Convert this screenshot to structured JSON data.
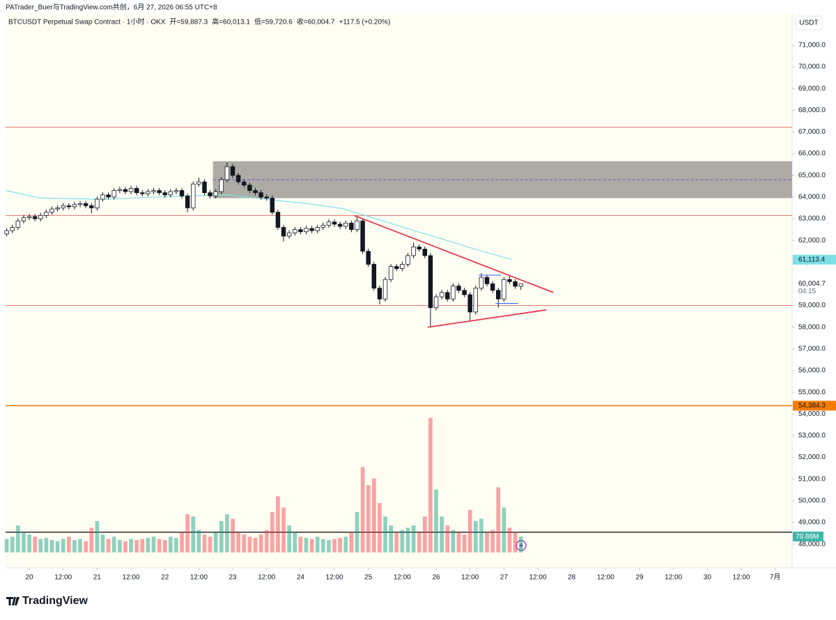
{
  "chart_data": {
    "type": "candlestick",
    "attribution": "PATrader_Buer与TradingView.com共创，6月 27, 2026 06:55 UTC+8",
    "symbol": "BTCUSDT Perpetual Swap Contract · 1小时 · OKX",
    "ohlc_text": [
      "开=59,887.3",
      "高=60,013.1",
      "低=59,720.6",
      "收=60,004.7",
      "+117.5 (+0.20%)"
    ],
    "currency": "USDT",
    "brand": "TradingView",
    "xlim": [
      "2026-06-19 15:36",
      "2026-07-01 06:00"
    ],
    "xticks": [
      {
        "value": "2026-06-20 00:00",
        "label": "20"
      },
      {
        "value": "2026-06-20 12:00",
        "label": "12:00"
      },
      {
        "value": "2026-06-21 00:00",
        "label": "21"
      },
      {
        "value": "2026-06-21 12:00",
        "label": "12:00"
      },
      {
        "value": "2026-06-22 00:00",
        "label": "22"
      },
      {
        "value": "2026-06-22 12:00",
        "label": "12:00"
      },
      {
        "value": "2026-06-23 00:00",
        "label": "23"
      },
      {
        "value": "2026-06-23 12:00",
        "label": "12:00"
      },
      {
        "value": "2026-06-24 00:00",
        "label": "24"
      },
      {
        "value": "2026-06-24 12:00",
        "label": "12:00"
      },
      {
        "value": "2026-06-25 00:00",
        "label": "25"
      },
      {
        "value": "2026-06-25 12:00",
        "label": "12:00"
      },
      {
        "value": "2026-06-26 00:00",
        "label": "26"
      },
      {
        "value": "2026-06-26 12:00",
        "label": "12:00"
      },
      {
        "value": "2026-06-27 00:00",
        "label": "27"
      },
      {
        "value": "2026-06-27 12:00",
        "label": "12:00"
      },
      {
        "value": "2026-06-28 00:00",
        "label": "28"
      },
      {
        "value": "2026-06-28 12:00",
        "label": "12:00"
      },
      {
        "value": "2026-06-29 00:00",
        "label": "29"
      },
      {
        "value": "2026-06-29 12:00",
        "label": "12:00"
      },
      {
        "value": "2026-06-30 00:00",
        "label": "30"
      },
      {
        "value": "2026-06-30 12:00",
        "label": "12:00"
      },
      {
        "value": "2026-07-01 00:00",
        "label": "7月"
      }
    ],
    "ylim": [
      47620,
      72440
    ],
    "yticks": [
      {
        "value": 48000,
        "label": "48,000.0"
      },
      {
        "value": 49000,
        "label": "49,000.0"
      },
      {
        "value": 50000,
        "label": "50,000.0"
      },
      {
        "value": 51000,
        "label": "51,000.0"
      },
      {
        "value": 52000,
        "label": "52,000.0"
      },
      {
        "value": 53000,
        "label": "53,000.0"
      },
      {
        "value": 54000,
        "label": "54,000.0"
      },
      {
        "value": 55000,
        "label": "55,000.0"
      },
      {
        "value": 56000,
        "label": "56,000.0"
      },
      {
        "value": 57000,
        "label": "57,000.0"
      },
      {
        "value": 58000,
        "label": "58,000.0"
      },
      {
        "value": 59000,
        "label": "59,000.0"
      },
      {
        "value": 60000,
        "label": "60,000.0"
      },
      {
        "value": 61000,
        "label": "61,000.0"
      },
      {
        "value": 62000,
        "label": "62,000.0"
      },
      {
        "value": 63000,
        "label": "63,000.0"
      },
      {
        "value": 64000,
        "label": "64,000.0"
      },
      {
        "value": 65000,
        "label": "65,000.0"
      },
      {
        "value": 66000,
        "label": "66,000.0"
      },
      {
        "value": 67000,
        "label": "67,000.0"
      },
      {
        "value": 68000,
        "label": "68,000.0"
      },
      {
        "value": 69000,
        "label": "69,000.0"
      },
      {
        "value": 70000,
        "label": "70,000.0"
      },
      {
        "value": 71000,
        "label": "71,000.0"
      }
    ],
    "up_color": "#089981",
    "down_color": "#f23645",
    "candles": {
      "x": [
        "2026-06-19 16:00",
        "2026-06-19 18:00",
        "2026-06-19 20:00",
        "2026-06-19 22:00",
        "2026-06-20 00:00",
        "2026-06-20 02:00",
        "2026-06-20 04:00",
        "2026-06-20 06:00",
        "2026-06-20 08:00",
        "2026-06-20 10:00",
        "2026-06-20 12:00",
        "2026-06-20 14:00",
        "2026-06-20 16:00",
        "2026-06-20 18:00",
        "2026-06-20 20:00",
        "2026-06-20 22:00",
        "2026-06-21 00:00",
        "2026-06-21 02:00",
        "2026-06-21 04:00",
        "2026-06-21 06:00",
        "2026-06-21 08:00",
        "2026-06-21 10:00",
        "2026-06-21 12:00",
        "2026-06-21 14:00",
        "2026-06-21 16:00",
        "2026-06-21 18:00",
        "2026-06-21 20:00",
        "2026-06-21 22:00",
        "2026-06-22 00:00",
        "2026-06-22 02:00",
        "2026-06-22 04:00",
        "2026-06-22 06:00",
        "2026-06-22 08:00",
        "2026-06-22 10:00",
        "2026-06-22 12:00",
        "2026-06-22 14:00",
        "2026-06-22 16:00",
        "2026-06-22 18:00",
        "2026-06-22 20:00",
        "2026-06-22 22:00",
        "2026-06-23 00:00",
        "2026-06-23 02:00",
        "2026-06-23 04:00",
        "2026-06-23 06:00",
        "2026-06-23 08:00",
        "2026-06-23 10:00",
        "2026-06-23 12:00",
        "2026-06-23 14:00",
        "2026-06-23 16:00",
        "2026-06-23 18:00",
        "2026-06-23 20:00",
        "2026-06-23 22:00",
        "2026-06-24 00:00",
        "2026-06-24 02:00",
        "2026-06-24 04:00",
        "2026-06-24 06:00",
        "2026-06-24 08:00",
        "2026-06-24 10:00",
        "2026-06-24 12:00",
        "2026-06-24 14:00",
        "2026-06-24 16:00",
        "2026-06-24 18:00",
        "2026-06-24 20:00",
        "2026-06-24 22:00",
        "2026-06-25 00:00",
        "2026-06-25 02:00",
        "2026-06-25 04:00",
        "2026-06-25 06:00",
        "2026-06-25 08:00",
        "2026-06-25 10:00",
        "2026-06-25 12:00",
        "2026-06-25 14:00",
        "2026-06-25 16:00",
        "2026-06-25 18:00",
        "2026-06-25 20:00",
        "2026-06-25 22:00",
        "2026-06-26 00:00",
        "2026-06-26 02:00",
        "2026-06-26 04:00",
        "2026-06-26 06:00",
        "2026-06-26 08:00",
        "2026-06-26 10:00",
        "2026-06-26 12:00",
        "2026-06-26 14:00",
        "2026-06-26 16:00",
        "2026-06-26 18:00",
        "2026-06-26 20:00",
        "2026-06-26 22:00",
        "2026-06-27 00:00",
        "2026-06-27 02:00",
        "2026-06-27 04:00",
        "2026-06-27 06:00"
      ],
      "open": [
        62300,
        62450,
        62600,
        62900,
        63050,
        63100,
        63000,
        63150,
        63300,
        63450,
        63500,
        63600,
        63550,
        63650,
        63700,
        63600,
        63500,
        63900,
        64100,
        64000,
        64300,
        64350,
        64250,
        64400,
        64200,
        64150,
        64250,
        64300,
        64200,
        64100,
        64250,
        64300,
        64050,
        63500,
        64600,
        64700,
        64200,
        64050,
        64250,
        64800,
        65400,
        65000,
        64700,
        64550,
        64300,
        64200,
        64000,
        63950,
        63300,
        62600,
        62200,
        62350,
        62500,
        62400,
        62550,
        62450,
        62600,
        62700,
        62850,
        62750,
        62650,
        62800,
        62500,
        62900,
        61500,
        60900,
        59800,
        59300,
        60200,
        60800,
        60700,
        60900,
        61300,
        61700,
        61600,
        61300,
        58900,
        59400,
        59600,
        59300,
        59900,
        59700,
        59500,
        58700,
        59800,
        60300,
        60000,
        59700,
        59300,
        60200,
        60100,
        59887.3
      ],
      "high": [
        62570,
        62720,
        63020,
        63170,
        63220,
        63220,
        63270,
        63420,
        63570,
        63620,
        63720,
        63720,
        63770,
        63820,
        63820,
        63720,
        64020,
        64220,
        64220,
        64420,
        64470,
        64470,
        64520,
        64520,
        64320,
        64370,
        64420,
        64420,
        64320,
        64370,
        64420,
        64420,
        64170,
        64720,
        64900,
        64820,
        64320,
        64370,
        64920,
        65600,
        65520,
        65120,
        64820,
        64670,
        64420,
        64320,
        64120,
        64070,
        63420,
        62720,
        62470,
        62620,
        62620,
        62670,
        62670,
        62720,
        62820,
        62970,
        62970,
        62870,
        62920,
        62920,
        63150,
        63020,
        61620,
        61020,
        59920,
        60320,
        60920,
        60920,
        61020,
        61420,
        61900,
        61820,
        61720,
        61420,
        59520,
        59720,
        59720,
        60020,
        60020,
        59820,
        59620,
        59920,
        60500,
        60420,
        60120,
        59820,
        60320,
        60400,
        60220,
        60013.1
      ],
      "low": [
        62180,
        62330,
        62480,
        62780,
        62930,
        62880,
        62880,
        63030,
        63180,
        63330,
        63380,
        63430,
        63430,
        63530,
        63480,
        63250,
        63380,
        63780,
        63880,
        63880,
        64180,
        64130,
        64130,
        64080,
        64030,
        64030,
        64130,
        64080,
        63980,
        63980,
        64130,
        63930,
        63300,
        63380,
        64480,
        64080,
        63930,
        63930,
        64130,
        64680,
        64880,
        64580,
        64430,
        64180,
        64080,
        63880,
        63830,
        63180,
        62480,
        61950,
        62080,
        62230,
        62280,
        62280,
        62330,
        62330,
        62480,
        62580,
        62630,
        62530,
        62530,
        62380,
        62380,
        61380,
        60780,
        59680,
        59050,
        59180,
        60080,
        60580,
        60580,
        60780,
        61180,
        61480,
        61180,
        58000,
        58780,
        59280,
        59180,
        59180,
        59580,
        59380,
        58300,
        58580,
        59680,
        59880,
        59580,
        58900,
        59180,
        59980,
        59767,
        59720.6
      ],
      "close": [
        62450,
        62600,
        62900,
        63050,
        63100,
        63000,
        63150,
        63300,
        63450,
        63500,
        63600,
        63550,
        63650,
        63700,
        63600,
        63500,
        63900,
        64100,
        64000,
        64300,
        64350,
        64250,
        64400,
        64200,
        64150,
        64250,
        64300,
        64200,
        64100,
        64250,
        64300,
        64050,
        63500,
        64600,
        64700,
        64200,
        64050,
        64250,
        64800,
        65400,
        65000,
        64700,
        64550,
        64300,
        64200,
        64000,
        63950,
        63300,
        62600,
        62200,
        62350,
        62500,
        62400,
        62550,
        62450,
        62600,
        62700,
        62850,
        62750,
        62650,
        62800,
        62500,
        62900,
        61500,
        60900,
        59800,
        59300,
        60200,
        60800,
        60700,
        60900,
        61300,
        61700,
        61600,
        61300,
        58900,
        59400,
        59600,
        59300,
        59900,
        59700,
        59500,
        58700,
        59800,
        60300,
        60000,
        59700,
        59300,
        60200,
        60100,
        59887.3,
        60004.7
      ],
      "volume": [
        60,
        70,
        120,
        90,
        80,
        70,
        60,
        65,
        55,
        50,
        60,
        70,
        55,
        60,
        50,
        110,
        140,
        80,
        60,
        70,
        55,
        50,
        60,
        55,
        60,
        65,
        70,
        60,
        55,
        70,
        65,
        90,
        170,
        160,
        100,
        80,
        70,
        90,
        140,
        170,
        150,
        90,
        80,
        70,
        65,
        80,
        100,
        180,
        250,
        200,
        120,
        90,
        70,
        65,
        60,
        70,
        60,
        55,
        60,
        65,
        70,
        90,
        180,
        380,
        300,
        330,
        220,
        160,
        120,
        90,
        100,
        110,
        120,
        90,
        160,
        600,
        280,
        160,
        120,
        100,
        90,
        80,
        190,
        140,
        150,
        90,
        100,
        290,
        200,
        110,
        90,
        70.86
      ]
    },
    "volume_ylim": [
      0,
      2400
    ],
    "volume_last_label": "70.86M",
    "last_price": {
      "value": 60004.7,
      "label": "60,004.7"
    },
    "countdown": "04:15",
    "ma": {
      "color": "#7ee0e6",
      "x": [
        "2026-06-19 15:36",
        "2026-06-20 04:00",
        "2026-06-21 02:00",
        "2026-06-22 02:00",
        "2026-06-22 22:00",
        "2026-06-23 15:00",
        "2026-06-24 03:00",
        "2026-06-24 15:00",
        "2026-06-25 03:00",
        "2026-06-25 15:00",
        "2026-06-26 03:00",
        "2026-06-26 15:00",
        "2026-06-27 03:00"
      ],
      "values": [
        64300,
        63950,
        63900,
        64020,
        64110,
        63850,
        63690,
        63470,
        62990,
        62500,
        62030,
        61550,
        61113.4
      ],
      "label": {
        "value": 61113.4,
        "label": "61,113.4"
      }
    },
    "hlines": [
      {
        "value": 67220,
        "color": "#e57373"
      },
      {
        "value": 63150,
        "color": "#e57373"
      },
      {
        "value": 59000,
        "color": "#e57373"
      },
      {
        "value": 48550,
        "color": "#000000"
      }
    ],
    "support_line": {
      "value": 54384.3,
      "label": "54,384.3",
      "color": "#f57c00"
    },
    "zone": {
      "x": "2026-06-22 17:00",
      "low": 63950,
      "high": 65650,
      "mid": 64800,
      "color": "#9e9e95"
    },
    "trendlines": [
      {
        "x": [
          "2026-06-24 19:00",
          "2026-06-27 17:30"
        ],
        "y": [
          63150,
          59600
        ],
        "color": "#e53950"
      },
      {
        "x": [
          "2026-06-25 21:00",
          "2026-06-27 15:00"
        ],
        "y": [
          58000,
          58800
        ],
        "color": "#e53950"
      },
      {
        "x": [
          "2026-06-26 15:00",
          "2026-06-26 23:00"
        ],
        "y": [
          60400,
          60400
        ],
        "color": "#2962ff"
      },
      {
        "x": [
          "2026-06-26 21:00",
          "2026-06-27 05:00"
        ],
        "y": [
          59100,
          59100
        ],
        "color": "#2962ff"
      }
    ]
  }
}
